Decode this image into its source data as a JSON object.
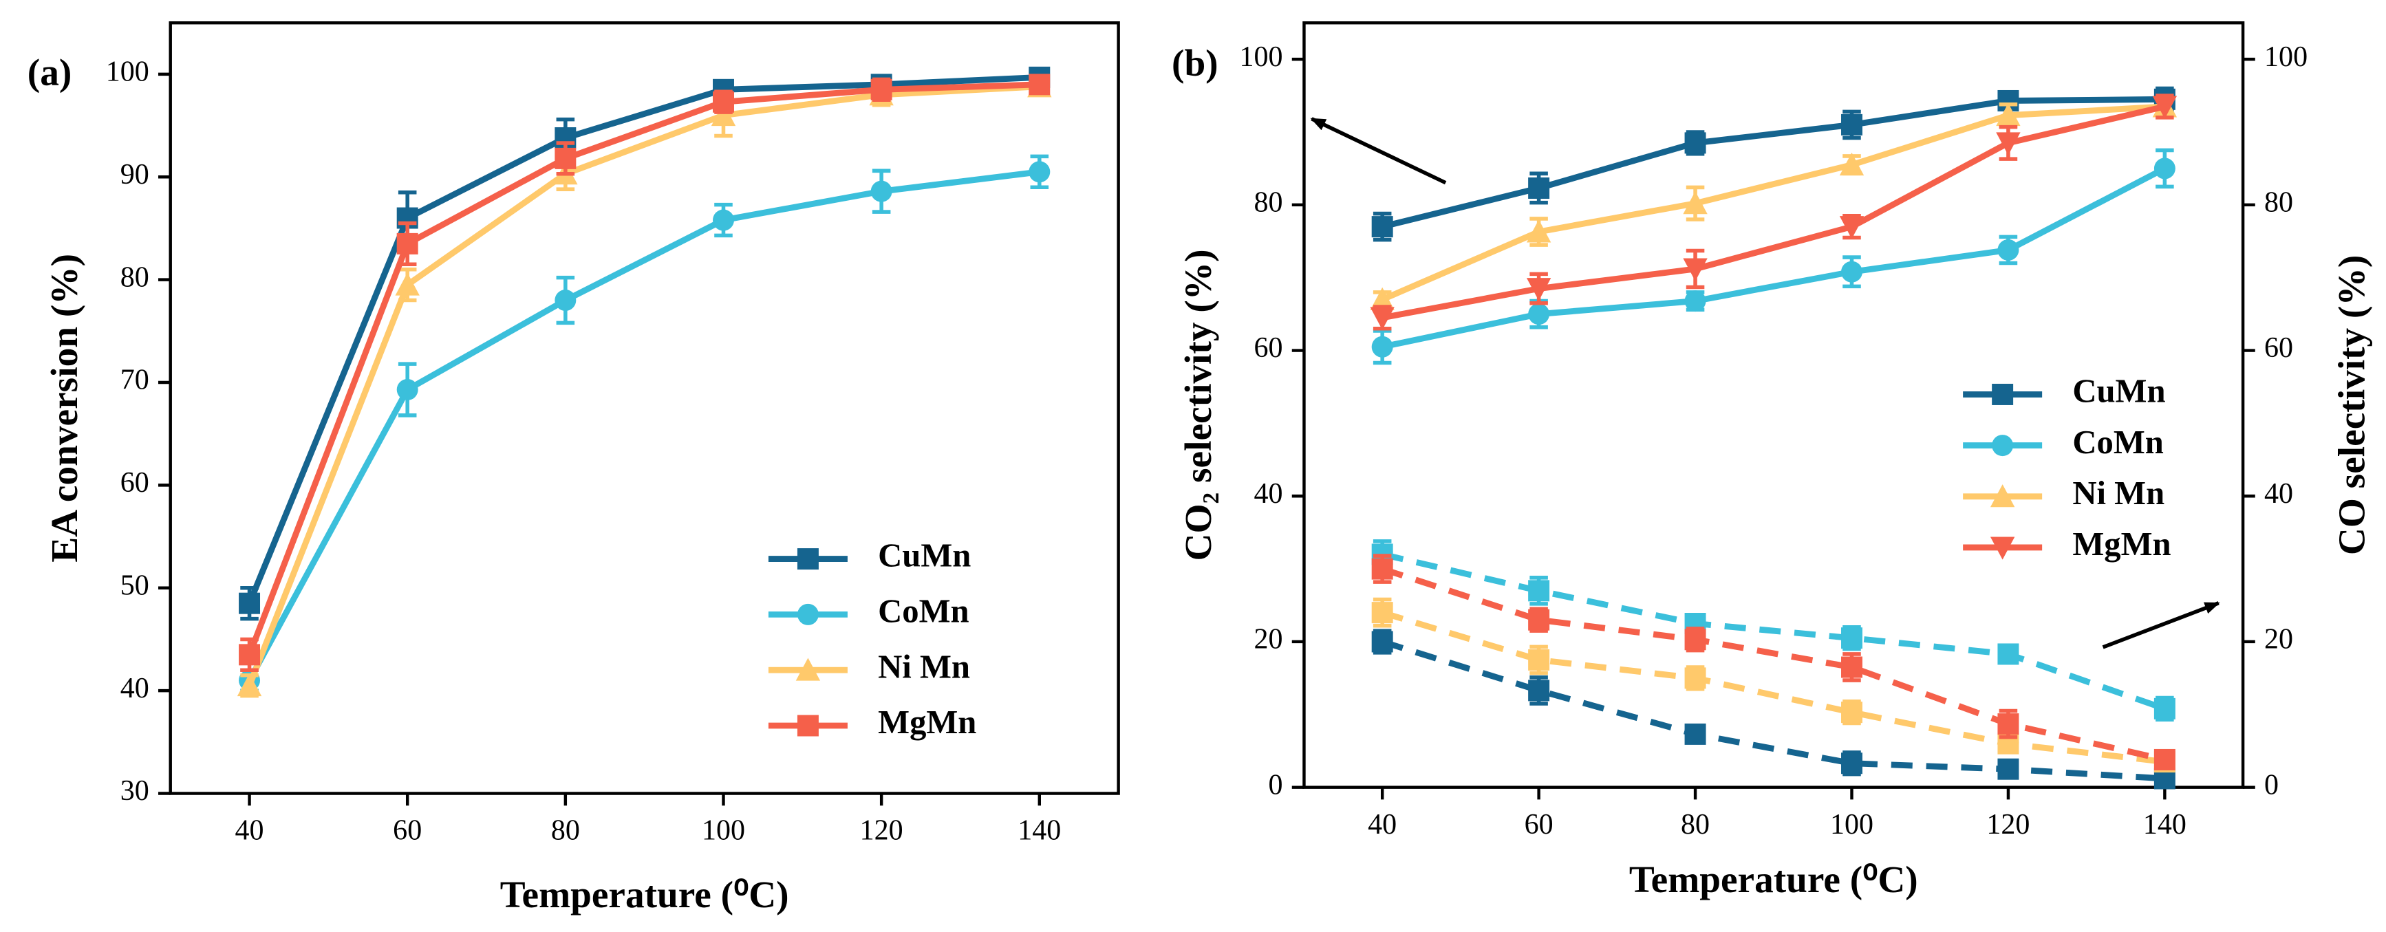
{
  "chart_data": [
    {
      "type": "line",
      "label": "(a)",
      "xlabel": "Temperature (⁰C)",
      "ylabel": "EA conversion (%)",
      "x": [
        40,
        60,
        80,
        100,
        120,
        140
      ],
      "xlim": [
        30,
        150
      ],
      "xticks": [
        40,
        60,
        80,
        100,
        120,
        140
      ],
      "ylim": [
        30,
        105
      ],
      "yticks": [
        30,
        40,
        50,
        60,
        70,
        80,
        90,
        100
      ],
      "legend": "lower right",
      "series": [
        {
          "name": "CuMn",
          "color": "#15648f",
          "marker": "square",
          "values": [
            48.5,
            86,
            93.8,
            98.5,
            99,
            99.7
          ],
          "errors": [
            1.5,
            2.5,
            1.8,
            0.8,
            0.5,
            0.5
          ]
        },
        {
          "name": "CoMn",
          "color": "#3bbfdb",
          "marker": "circle",
          "values": [
            41,
            69.3,
            78,
            85.8,
            88.6,
            90.5
          ],
          "errors": [
            1,
            2.5,
            2.2,
            1.5,
            2,
            1.5
          ]
        },
        {
          "name": "Ni Mn",
          "color": "#ffc96b",
          "marker": "triangle-up",
          "values": [
            40.5,
            79.5,
            90.3,
            96,
            98,
            98.8
          ],
          "errors": [
            1,
            1.5,
            1.5,
            2,
            1,
            0.8
          ]
        },
        {
          "name": "MgMn",
          "color": "#f5604a",
          "marker": "square",
          "values": [
            43.5,
            83.5,
            91.8,
            97.3,
            98.5,
            99
          ],
          "errors": [
            1.5,
            2,
            1.5,
            1,
            1,
            0.8
          ]
        }
      ]
    },
    {
      "type": "line",
      "label": "(b)",
      "xlabel": "Temperature (⁰C)",
      "ylabel": "CO₂ selectivity (%)",
      "y2label": "CO selectivity (%)",
      "x": [
        40,
        60,
        80,
        100,
        120,
        140
      ],
      "xlim": [
        30,
        150
      ],
      "xticks": [
        40,
        60,
        80,
        100,
        120,
        140
      ],
      "ylim": [
        0,
        105
      ],
      "yticks": [
        0,
        20,
        40,
        60,
        80,
        100
      ],
      "y2lim": [
        0,
        105
      ],
      "y2ticks": [
        0,
        20,
        40,
        60,
        80,
        100
      ],
      "legend": "center right",
      "series": [
        {
          "name": "CuMn",
          "color": "#15648f",
          "marker": "square",
          "values": [
            77,
            82.3,
            88.5,
            91,
            94.3,
            94.5
          ],
          "errors": [
            1.8,
            2,
            1.5,
            1.8,
            1,
            1.5
          ]
        },
        {
          "name": "CoMn",
          "color": "#3bbfdb",
          "marker": "circle",
          "values": [
            60.5,
            65,
            66.8,
            70.8,
            73.8,
            85
          ],
          "errors": [
            2.2,
            1.8,
            1.2,
            2,
            1.8,
            2.5
          ]
        },
        {
          "name": "Ni Mn",
          "color": "#ffc96b",
          "marker": "triangle-up",
          "values": [
            67,
            76.3,
            80.2,
            85.5,
            92.3,
            93.5
          ],
          "errors": [
            1,
            1.8,
            2.2,
            1.2,
            1.5,
            1
          ]
        },
        {
          "name": "MgMn",
          "color": "#f5604a",
          "marker": "triangle-down",
          "values": [
            64.5,
            68.5,
            71.2,
            77,
            88.5,
            93.5
          ],
          "errors": [
            1.5,
            2,
            2.5,
            1.5,
            2.2,
            1.5
          ]
        },
        {
          "name": "CuMn",
          "color": "#15648f",
          "marker": "square",
          "axis": "y2",
          "dashed": true,
          "values": [
            20,
            13.3,
            7.3,
            3.3,
            2.5,
            1.2
          ],
          "errors": [
            1.5,
            1.8,
            1,
            1.5,
            0.8,
            0.8
          ]
        },
        {
          "name": "CoMn",
          "color": "#3bbfdb",
          "marker": "square",
          "axis": "y2",
          "dashed": true,
          "values": [
            32,
            27,
            22.5,
            20.5,
            18.3,
            10.8
          ],
          "errors": [
            1.8,
            1.8,
            1.2,
            1.5,
            1.2,
            1.5
          ]
        },
        {
          "name": "Ni Mn",
          "color": "#ffc96b",
          "marker": "square",
          "axis": "y2",
          "dashed": true,
          "values": [
            24,
            17.5,
            15,
            10.3,
            6,
            3.5
          ],
          "errors": [
            1.8,
            1.8,
            1.5,
            1.5,
            1,
            0.8
          ]
        },
        {
          "name": "MgMn",
          "color": "#f5604a",
          "marker": "square",
          "axis": "y2",
          "dashed": true,
          "values": [
            30,
            23,
            20.3,
            16.5,
            8.7,
            3.8
          ],
          "errors": [
            1.8,
            1.5,
            1.5,
            1.8,
            1.8,
            1
          ]
        }
      ]
    }
  ]
}
